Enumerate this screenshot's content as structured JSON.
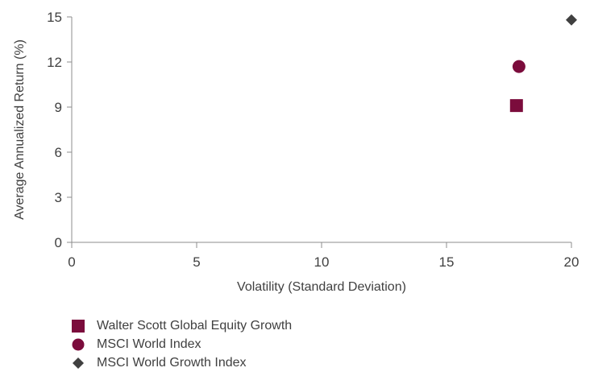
{
  "chart_data": {
    "type": "scatter",
    "title": "",
    "xlabel": "Volatility (Standard Deviation)",
    "ylabel": "Average Annualized Return (%)",
    "xlim": [
      0,
      20
    ],
    "ylim": [
      0,
      15
    ],
    "xticks": [
      "0",
      "5",
      "10",
      "15",
      "20"
    ],
    "yticks": [
      "0",
      "3",
      "6",
      "9",
      "12",
      "15"
    ],
    "grid": false,
    "legend_position": "bottom-left",
    "series": [
      {
        "name": "Walter Scott Global Equity Growth",
        "x": 17.8,
        "y": 9.1,
        "marker": "square",
        "color": "#7b0c3c"
      },
      {
        "name": "MSCI World Index",
        "x": 17.9,
        "y": 11.7,
        "marker": "circle",
        "color": "#7b0c3c"
      },
      {
        "name": "MSCI World Growth Index",
        "x": 20.0,
        "y": 14.8,
        "marker": "diamond",
        "color": "#404040"
      }
    ]
  }
}
